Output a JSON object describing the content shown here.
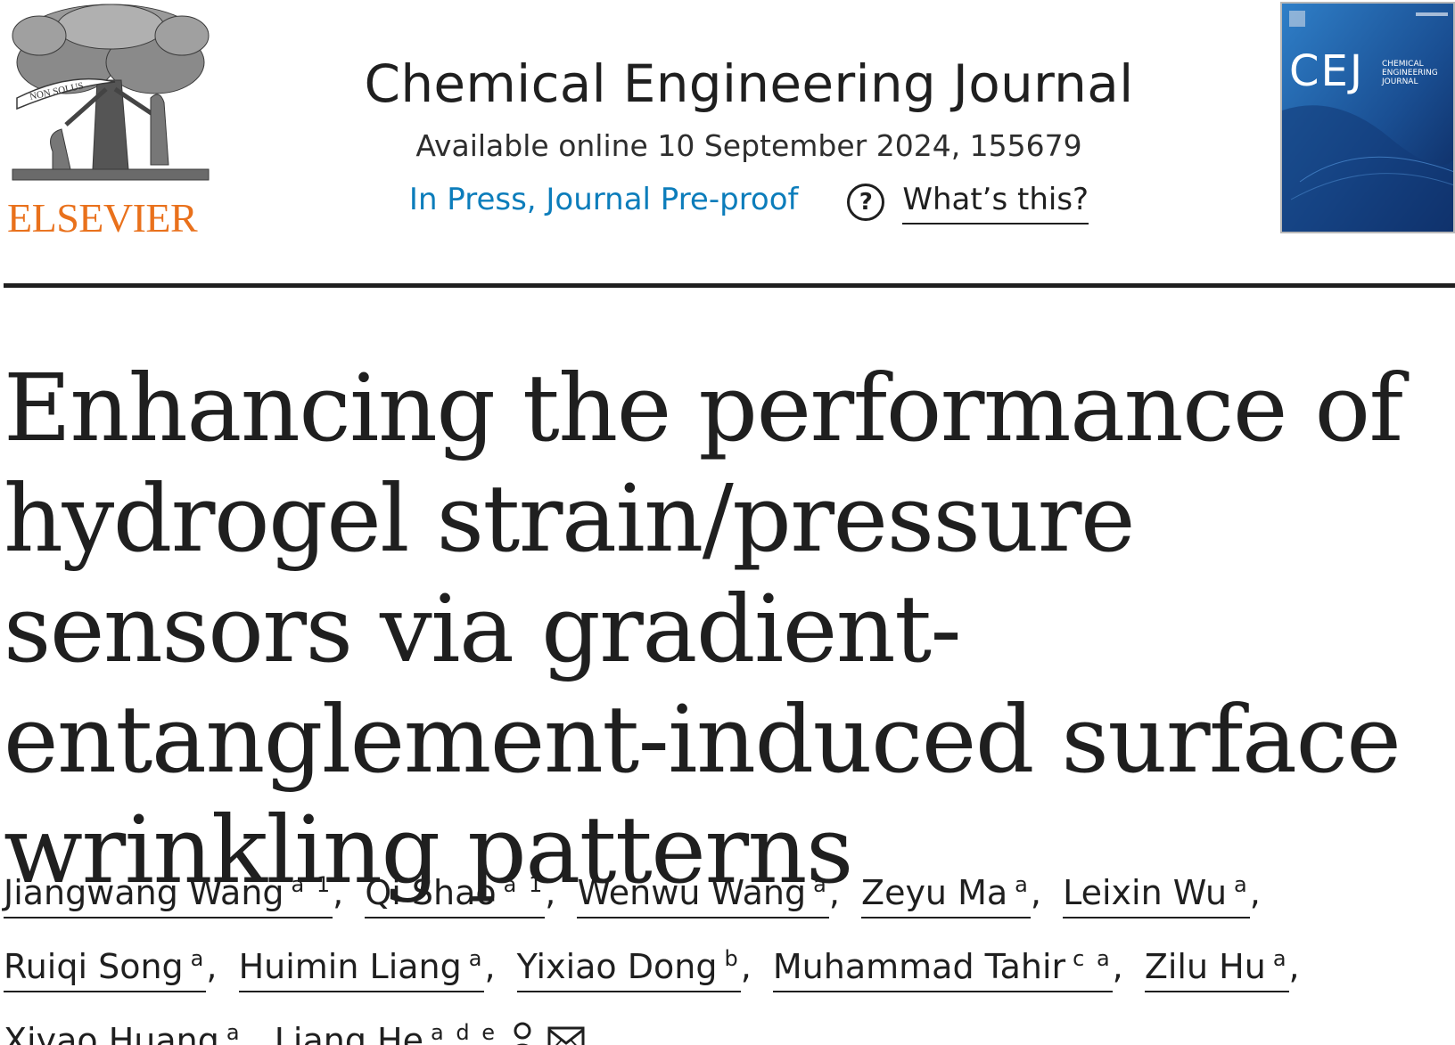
{
  "header": {
    "publisher": "ELSEVIER",
    "publisher_logo_text": "NON SOLUS",
    "journal_title": "Chemical Engineering Journal",
    "availability": "Available online 10 September 2024, 155679",
    "status_label": "In Press, Journal Pre-proof",
    "help_link": "What’s this?",
    "cover": {
      "abbr": "CEJ",
      "subtitle_lines": [
        "CHEMICAL",
        "ENGINEERING",
        "JOURNAL"
      ]
    }
  },
  "article": {
    "title": "Enhancing the performance of hydrogel strain/pressure sensors via gradient-entanglement-induced surface wrinkling patterns"
  },
  "authors": [
    {
      "name": "Jiangwang Wang",
      "aff": "a 1"
    },
    {
      "name": "Qi Shao",
      "aff": "a 1"
    },
    {
      "name": "Wenwu Wang",
      "aff": "a"
    },
    {
      "name": "Zeyu Ma",
      "aff": "a"
    },
    {
      "name": "Leixin Wu",
      "aff": "a"
    },
    {
      "name": "Ruiqi Song",
      "aff": "a"
    },
    {
      "name": "Huimin Liang",
      "aff": "a"
    },
    {
      "name": "Yixiao Dong",
      "aff": "b"
    },
    {
      "name": "Muhammad Tahir",
      "aff": "c a"
    },
    {
      "name": "Zilu Hu",
      "aff": "a"
    },
    {
      "name": "Xiyao Huang",
      "aff": "a"
    },
    {
      "name": "Liang He",
      "aff": "a d e"
    }
  ],
  "colors": {
    "publisher_orange": "#e9711c",
    "link_blue": "#0c7dbb",
    "text_dark": "#1f1f1f",
    "cover_blue": "#1a5a9e"
  },
  "icons": {
    "help": "question-circle-icon",
    "person": "person-icon",
    "email": "envelope-icon"
  }
}
